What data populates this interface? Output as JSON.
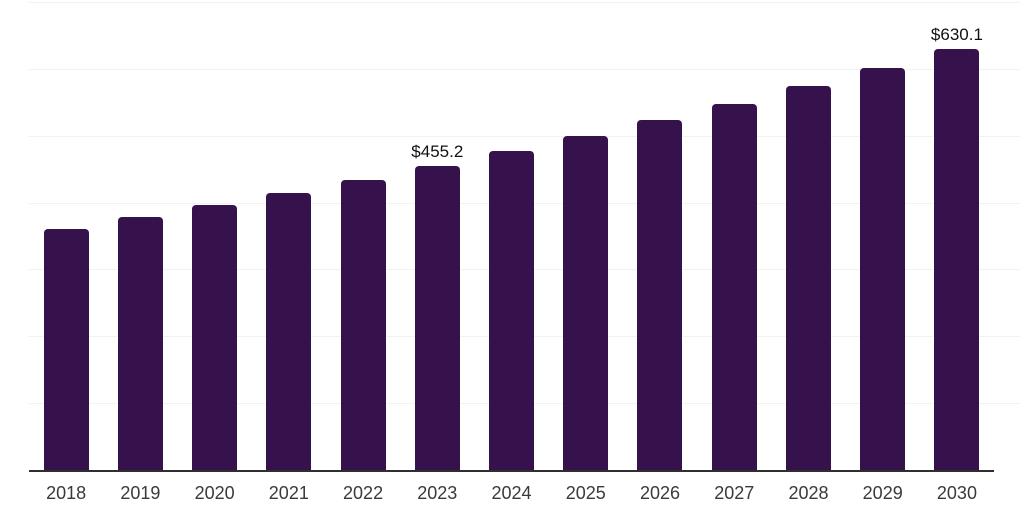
{
  "chart_data": {
    "type": "bar",
    "title": "",
    "categories": [
      "2018",
      "2019",
      "2020",
      "2021",
      "2022",
      "2023",
      "2024",
      "2025",
      "2026",
      "2027",
      "2028",
      "2029",
      "2030"
    ],
    "values": [
      360.9,
      378.0,
      396.0,
      414.8,
      434.5,
      455.2,
      476.8,
      499.5,
      523.3,
      548.1,
      574.2,
      601.5,
      630.1
    ],
    "shown_value_labels": {
      "2023": "$455.2",
      "2030": "$630.1"
    },
    "value_prefix": "$",
    "xlabel": "",
    "ylabel": "",
    "ylim": [
      0,
      700
    ],
    "gridline_values": [
      100,
      200,
      300,
      400,
      500,
      600,
      700
    ],
    "grid": "horizontal",
    "legend": false,
    "layout_hints": {
      "bar_color_single_series": true,
      "y_axis_labels_hidden": true,
      "baseline_axis_visible": true
    }
  },
  "colors": {
    "bar": "#36124D",
    "gridline": "#F2F2F2",
    "axis_line": "#2F2F2F",
    "tick_label": "#3A3A3A",
    "value_label": "#111111",
    "background": "#FFFFFF"
  }
}
